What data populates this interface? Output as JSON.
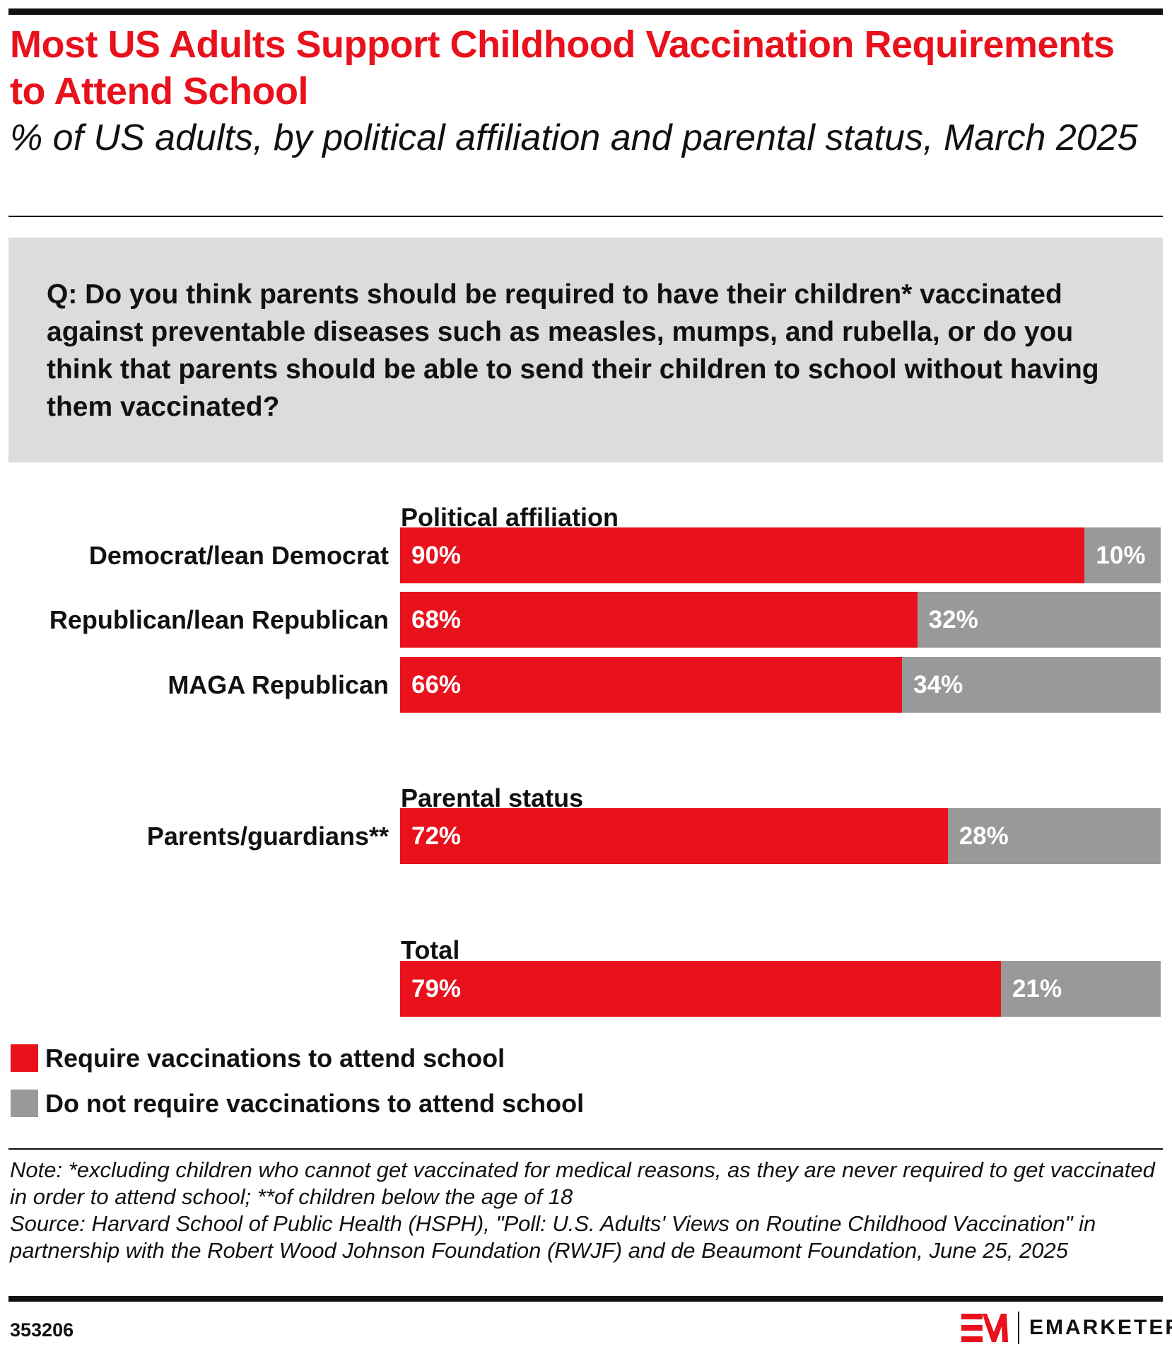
{
  "header": {
    "title": "Most US Adults Support Childhood Vaccination Requirements to Attend School",
    "subtitle": "% of US adults, by political affiliation and parental status, March 2025"
  },
  "question": "Q: Do you think parents should be required to have their children* vaccinated against preventable diseases such as measles, mumps, and rubella, or do you think that parents should be able to send their children to school without having them vaccinated?",
  "chart_data": {
    "type": "bar",
    "orientation": "horizontal",
    "stacked": true,
    "xlim": [
      0,
      100
    ],
    "colors": {
      "require": "#e8111c",
      "not_require": "#999999"
    },
    "legend_placement": "bottom-left",
    "groups": [
      {
        "label": "Political affiliation",
        "rows": [
          {
            "label": "Democrat/lean Democrat",
            "values": [
              90,
              10
            ],
            "labels": [
              "90%",
              "10%"
            ]
          },
          {
            "label": "Republican/lean Republican",
            "values": [
              68,
              32
            ],
            "labels": [
              "68%",
              "32%"
            ]
          },
          {
            "label": "MAGA Republican",
            "values": [
              66,
              34
            ],
            "labels": [
              "66%",
              "34%"
            ]
          }
        ]
      },
      {
        "label": "Parental status",
        "rows": [
          {
            "label": "Parents/guardians**",
            "values": [
              72,
              28
            ],
            "labels": [
              "72%",
              "28%"
            ]
          }
        ]
      },
      {
        "label": "Total",
        "rows": [
          {
            "label": "",
            "values": [
              79,
              21
            ],
            "labels": [
              "79%",
              "21%"
            ]
          }
        ]
      }
    ],
    "series": [
      {
        "name": "Require vaccinations to attend school"
      },
      {
        "name": "Do not require vaccinations to attend school"
      }
    ]
  },
  "notes": {
    "note": "Note: *excluding children who cannot get vaccinated for medical reasons, as they are never required to get vaccinated in order to attend school; **of children below the age of 18",
    "source": "Source: Harvard School of Public Health (HSPH), \"Poll: U.S. Adults' Views on Routine Childhood Vaccination\" in partnership with the Robert Wood Johnson Foundation (RWJF) and de Beaumont Foundation, June 25, 2025"
  },
  "footer": {
    "chart_id": "353206",
    "brand": "EMARKETER"
  }
}
